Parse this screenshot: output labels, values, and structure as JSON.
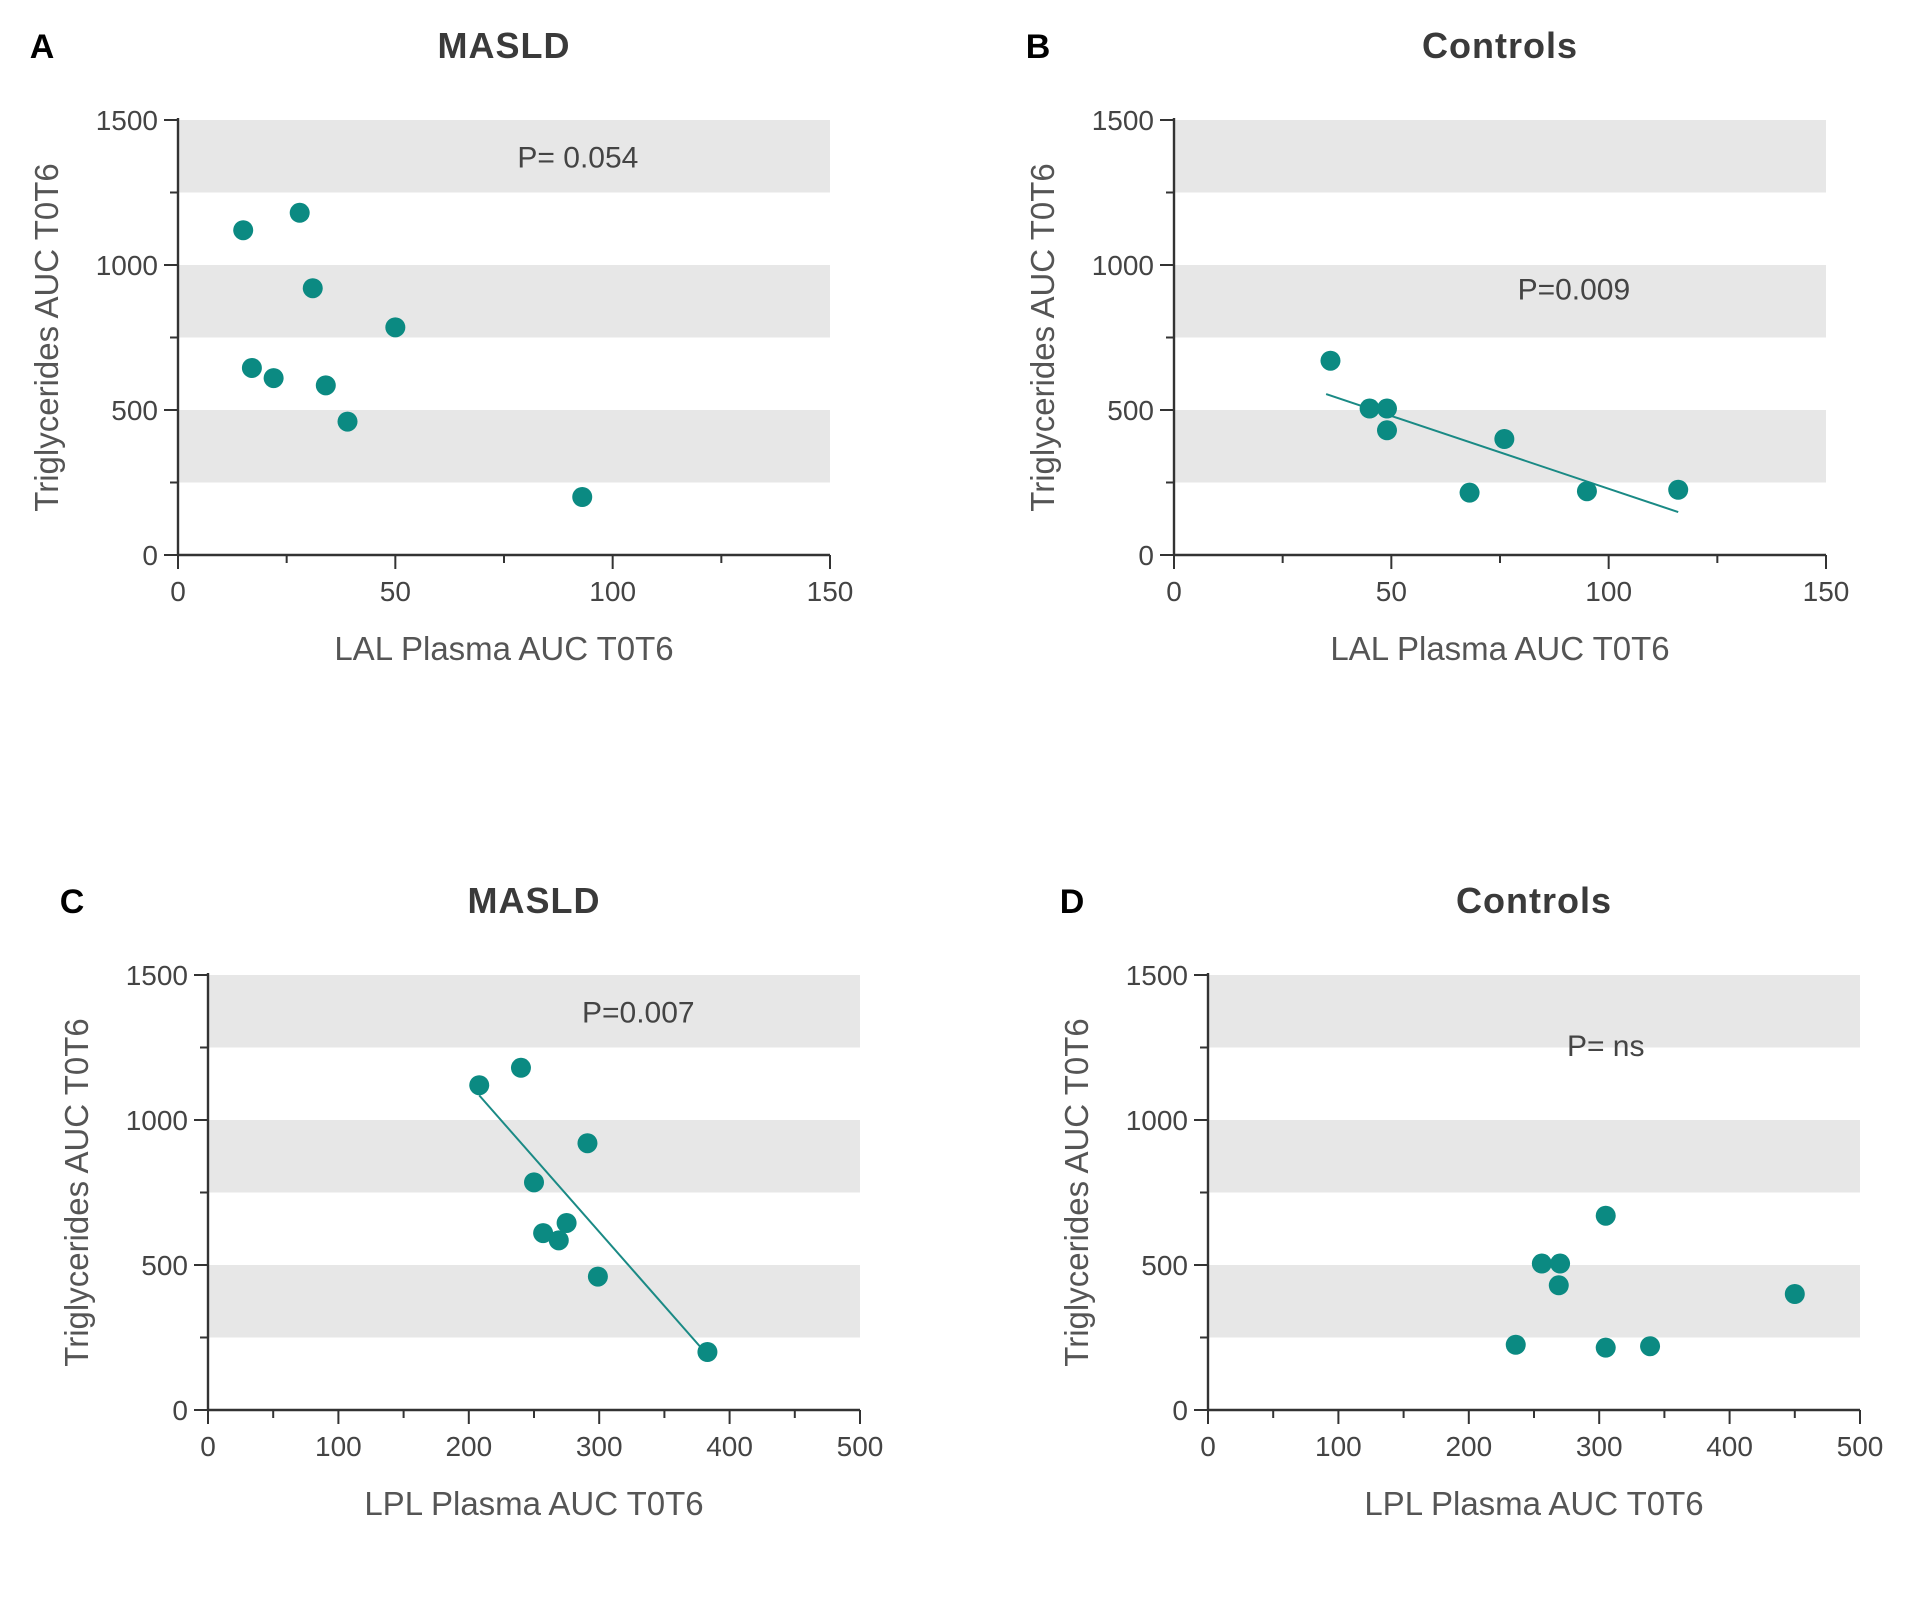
{
  "colors": {
    "point": "#0b8a82",
    "line": "#1a8a85",
    "band": "#e7e7e7",
    "axis": "#333333"
  },
  "chart_data": [
    {
      "panel": "A",
      "type": "scatter",
      "title": "MASLD",
      "xlabel": "LAL Plasma AUC T0T6",
      "ylabel": "Triglycerides AUC T0T6",
      "xlim": [
        0,
        150
      ],
      "ylim": [
        0,
        1500
      ],
      "xticks": [
        0,
        50,
        100,
        150
      ],
      "yticks": [
        0,
        500,
        1000,
        1500
      ],
      "bands": [
        [
          250,
          500
        ],
        [
          750,
          1000
        ],
        [
          1250,
          1500
        ]
      ],
      "annotation": {
        "text": "P= 0.054",
        "x": 92,
        "y": 1370
      },
      "points": [
        {
          "x": 15,
          "y": 1120
        },
        {
          "x": 28,
          "y": 1180
        },
        {
          "x": 31,
          "y": 920
        },
        {
          "x": 50,
          "y": 785
        },
        {
          "x": 17,
          "y": 645
        },
        {
          "x": 22,
          "y": 610
        },
        {
          "x": 34,
          "y": 585
        },
        {
          "x": 39,
          "y": 460
        },
        {
          "x": 93,
          "y": 200
        }
      ],
      "fit": null
    },
    {
      "panel": "B",
      "type": "scatter",
      "title": "Controls",
      "xlabel": "LAL Plasma AUC T0T6",
      "ylabel": "Triglycerides AUC T0T6",
      "xlim": [
        0,
        150
      ],
      "ylim": [
        0,
        1500
      ],
      "xticks": [
        0,
        50,
        100,
        150
      ],
      "yticks": [
        0,
        500,
        1000,
        1500
      ],
      "bands": [
        [
          250,
          500
        ],
        [
          750,
          1000
        ],
        [
          1250,
          1500
        ]
      ],
      "annotation": {
        "text": "P=0.009",
        "x": 92,
        "y": 915
      },
      "points": [
        {
          "x": 36,
          "y": 670
        },
        {
          "x": 45,
          "y": 505
        },
        {
          "x": 49,
          "y": 505
        },
        {
          "x": 49,
          "y": 430
        },
        {
          "x": 76,
          "y": 400
        },
        {
          "x": 68,
          "y": 215
        },
        {
          "x": 95,
          "y": 220
        },
        {
          "x": 116,
          "y": 225
        }
      ],
      "fit": {
        "x1": 35,
        "y1": 555,
        "x2": 116,
        "y2": 148
      }
    },
    {
      "panel": "C",
      "type": "scatter",
      "title": "MASLD",
      "xlabel": "LPL Plasma AUC T0T6",
      "ylabel": "Triglycerides AUC T0T6",
      "xlim": [
        0,
        500
      ],
      "ylim": [
        0,
        1500
      ],
      "xticks": [
        0,
        100,
        200,
        300,
        400,
        500
      ],
      "yticks": [
        0,
        500,
        1000,
        1500
      ],
      "bands": [
        [
          250,
          500
        ],
        [
          750,
          1000
        ],
        [
          1250,
          1500
        ]
      ],
      "annotation": {
        "text": "P=0.007",
        "x": 330,
        "y": 1370
      },
      "points": [
        {
          "x": 208,
          "y": 1120
        },
        {
          "x": 240,
          "y": 1180
        },
        {
          "x": 291,
          "y": 920
        },
        {
          "x": 250,
          "y": 785
        },
        {
          "x": 275,
          "y": 645
        },
        {
          "x": 257,
          "y": 610
        },
        {
          "x": 269,
          "y": 585
        },
        {
          "x": 299,
          "y": 460
        },
        {
          "x": 383,
          "y": 200
        }
      ],
      "fit": {
        "x1": 208,
        "y1": 1085,
        "x2": 381,
        "y2": 200
      }
    },
    {
      "panel": "D",
      "type": "scatter",
      "title": "Controls",
      "xlabel": "LPL Plasma AUC T0T6",
      "ylabel": "Triglycerides AUC T0T6",
      "xlim": [
        0,
        500
      ],
      "ylim": [
        0,
        1500
      ],
      "xticks": [
        0,
        100,
        200,
        300,
        400,
        500
      ],
      "yticks": [
        0,
        500,
        1000,
        1500
      ],
      "bands": [
        [
          250,
          500
        ],
        [
          750,
          1000
        ],
        [
          1250,
          1500
        ]
      ],
      "annotation": {
        "text": "P= ns",
        "x": 305,
        "y": 1255
      },
      "points": [
        {
          "x": 305,
          "y": 670
        },
        {
          "x": 256,
          "y": 505
        },
        {
          "x": 270,
          "y": 505
        },
        {
          "x": 269,
          "y": 430
        },
        {
          "x": 450,
          "y": 400
        },
        {
          "x": 236,
          "y": 225
        },
        {
          "x": 305,
          "y": 215
        },
        {
          "x": 339,
          "y": 220
        }
      ],
      "fit": null
    }
  ]
}
